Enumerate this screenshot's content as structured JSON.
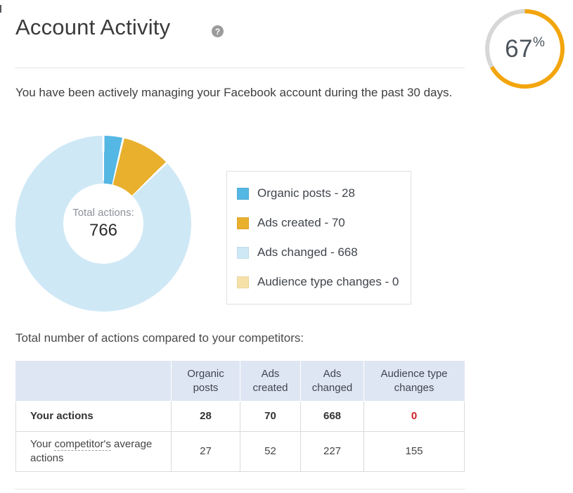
{
  "header": {
    "title": "Account Activity",
    "help_icon": "?"
  },
  "gauge": {
    "value_text": "67",
    "unit": "%"
  },
  "intro": "You have been actively managing your Facebook account during the past 30 days.",
  "donut": {
    "center_label": "Total actions:",
    "center_value": "766"
  },
  "legend": {
    "items": [
      {
        "label": "Organic posts - 28",
        "color": "#55B7E3"
      },
      {
        "label": "Ads created - 70",
        "color": "#E9B02E"
      },
      {
        "label": "Ads changed - 668",
        "color": "#CFE8F6"
      },
      {
        "label": "Audience type changes - 0",
        "color": "#F6E2A9"
      }
    ]
  },
  "comparison": {
    "heading": "Total number of actions compared to your competitors:",
    "columns": [
      "",
      "Organic posts",
      "Ads created",
      "Ads changed",
      "Audience type changes"
    ],
    "rows": [
      {
        "label": "Your actions",
        "values": [
          "28",
          "70",
          "668",
          "0"
        ]
      },
      {
        "label_prefix": "Your ",
        "label_term": "competitor's",
        "label_suffix": " average actions",
        "values": [
          "27",
          "52",
          "227",
          "155"
        ]
      }
    ]
  },
  "chart_data": [
    {
      "type": "pie",
      "subtype": "donut",
      "categories": [
        "Organic posts",
        "Ads created",
        "Ads changed",
        "Audience type changes"
      ],
      "values": [
        28,
        70,
        668,
        0
      ],
      "colors": [
        "#55B7E3",
        "#E9B02E",
        "#CFE8F6",
        "#F6E2A9"
      ],
      "total": 766,
      "title": "Total actions: 766",
      "legend_position": "right"
    },
    {
      "type": "gauge",
      "value": 67,
      "max": 100,
      "label": "67%",
      "fill_color": "#F2A50C",
      "track_color": "#D7D7D7"
    },
    {
      "type": "table",
      "title": "Total number of actions compared to your competitors:",
      "columns": [
        "",
        "Organic posts",
        "Ads created",
        "Ads changed",
        "Audience type changes"
      ],
      "rows": [
        {
          "label": "Your actions",
          "values": [
            28,
            70,
            668,
            0
          ]
        },
        {
          "label": "Your competitor's average actions",
          "values": [
            27,
            52,
            227,
            155
          ]
        }
      ]
    }
  ]
}
